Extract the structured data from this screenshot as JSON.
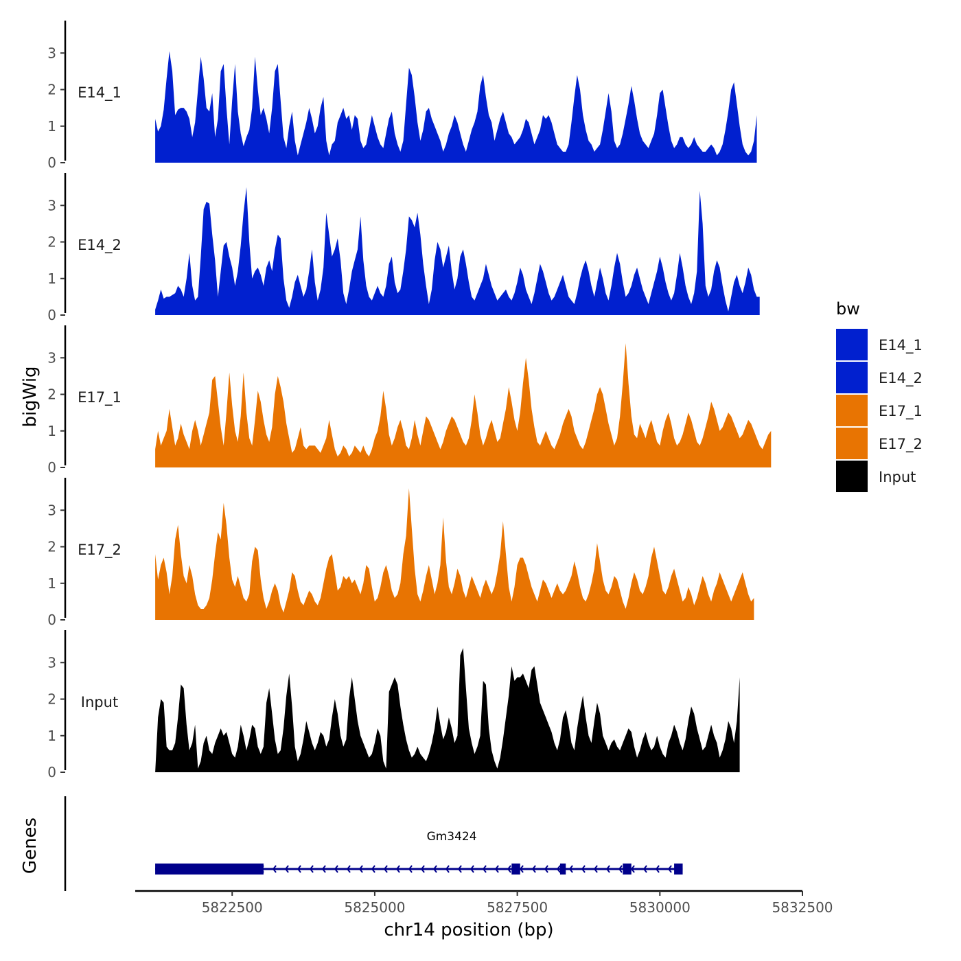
{
  "chart_data": {
    "type": "area",
    "title": "",
    "xlabel": "chr14 position (bp)",
    "ylabel": "bigWig",
    "genes_label": "Genes",
    "xlim": [
      5820800,
      5832500
    ],
    "x_ticks": [
      5822500,
      5825000,
      5827500,
      5830000,
      5832500
    ],
    "x_tick_labels": [
      "5822500",
      "5825000",
      "5827500",
      "5830000",
      "5832500"
    ],
    "ylim": [
      0,
      3.7
    ],
    "y_ticks": [
      0,
      1,
      2,
      3
    ],
    "y_tick_labels": [
      "0",
      "1",
      "2",
      "3"
    ],
    "data_start": 5821150,
    "data_step": 50,
    "legend": {
      "title": "bw",
      "entries": [
        {
          "label": "E14_1",
          "color": "#0120CF"
        },
        {
          "label": "E14_2",
          "color": "#0120CF"
        },
        {
          "label": "E17_1",
          "color": "#E87402"
        },
        {
          "label": "E17_2",
          "color": "#E87402"
        },
        {
          "label": "Input",
          "color": "#000000"
        }
      ]
    },
    "series": [
      {
        "name": "E14_1",
        "color": "#0120CF",
        "values": [
          1.2,
          0.85,
          1.0,
          1.45,
          2.3,
          3.05,
          2.5,
          1.3,
          1.45,
          1.5,
          1.5,
          1.4,
          1.2,
          0.7,
          1.1,
          2.0,
          2.9,
          2.3,
          1.5,
          1.4,
          1.9,
          0.7,
          1.2,
          2.5,
          2.7,
          1.5,
          0.5,
          1.7,
          2.7,
          1.4,
          0.8,
          0.45,
          0.7,
          0.9,
          1.5,
          2.9,
          2.0,
          1.3,
          1.5,
          1.2,
          0.8,
          1.5,
          2.5,
          2.7,
          1.7,
          0.7,
          0.4,
          1.0,
          1.4,
          0.6,
          0.2,
          0.5,
          0.8,
          1.1,
          1.5,
          1.2,
          0.8,
          1.0,
          1.5,
          1.8,
          0.6,
          0.2,
          0.5,
          0.6,
          1.1,
          1.3,
          1.5,
          1.2,
          1.3,
          0.9,
          1.3,
          1.2,
          0.6,
          0.4,
          0.5,
          0.9,
          1.3,
          1.0,
          0.7,
          0.5,
          0.4,
          0.8,
          1.2,
          1.4,
          0.8,
          0.5,
          0.3,
          0.6,
          1.6,
          2.6,
          2.4,
          1.8,
          1.1,
          0.6,
          0.9,
          1.4,
          1.5,
          1.2,
          1.0,
          0.8,
          0.6,
          0.3,
          0.5,
          0.8,
          1.0,
          1.3,
          1.1,
          0.8,
          0.5,
          0.3,
          0.6,
          0.9,
          1.1,
          1.4,
          2.1,
          2.4,
          1.8,
          1.3,
          1.1,
          0.6,
          0.9,
          1.2,
          1.4,
          1.1,
          0.8,
          0.7,
          0.5,
          0.6,
          0.7,
          0.9,
          1.2,
          1.1,
          0.8,
          0.5,
          0.7,
          0.9,
          1.3,
          1.2,
          1.3,
          1.1,
          0.8,
          0.5,
          0.4,
          0.3,
          0.3,
          0.5,
          1.1,
          1.8,
          2.4,
          2.0,
          1.3,
          0.9,
          0.6,
          0.5,
          0.3,
          0.4,
          0.5,
          0.9,
          1.4,
          1.9,
          1.4,
          0.6,
          0.4,
          0.5,
          0.8,
          1.2,
          1.6,
          2.1,
          1.7,
          1.2,
          0.8,
          0.6,
          0.5,
          0.4,
          0.6,
          0.8,
          1.3,
          1.9,
          2.0,
          1.5,
          1.0,
          0.6,
          0.4,
          0.5,
          0.7,
          0.7,
          0.5,
          0.4,
          0.5,
          0.7,
          0.5,
          0.4,
          0.3,
          0.3,
          0.4,
          0.5,
          0.4,
          0.2,
          0.3,
          0.5,
          0.9,
          1.4,
          2.0,
          2.2,
          1.6,
          1.0,
          0.5,
          0.3,
          0.2,
          0.3,
          0.6,
          1.3
        ]
      },
      {
        "name": "E14_2",
        "color": "#0120CF",
        "values": [
          0.15,
          0.4,
          0.7,
          0.45,
          0.5,
          0.5,
          0.55,
          0.6,
          0.8,
          0.7,
          0.5,
          1.0,
          1.7,
          0.8,
          0.4,
          0.5,
          1.6,
          2.9,
          3.1,
          3.05,
          2.2,
          1.5,
          0.5,
          1.2,
          1.9,
          2.0,
          1.6,
          1.3,
          0.8,
          1.2,
          1.9,
          2.8,
          3.5,
          2.0,
          1.0,
          1.2,
          1.3,
          1.1,
          0.8,
          1.3,
          1.5,
          1.2,
          1.8,
          2.2,
          2.1,
          1.0,
          0.4,
          0.2,
          0.5,
          0.9,
          1.1,
          0.8,
          0.5,
          0.7,
          1.2,
          1.8,
          0.9,
          0.4,
          0.7,
          1.3,
          2.8,
          2.2,
          1.6,
          1.8,
          2.1,
          1.5,
          0.6,
          0.3,
          0.7,
          1.2,
          1.5,
          1.8,
          2.7,
          1.5,
          0.8,
          0.5,
          0.4,
          0.6,
          0.8,
          0.6,
          0.5,
          0.8,
          1.4,
          1.6,
          0.9,
          0.6,
          0.7,
          1.2,
          1.8,
          2.7,
          2.6,
          2.4,
          2.8,
          2.2,
          1.4,
          0.8,
          0.3,
          0.7,
          1.5,
          2.0,
          1.8,
          1.3,
          1.6,
          1.9,
          1.2,
          0.7,
          1.0,
          1.6,
          1.8,
          1.4,
          0.9,
          0.5,
          0.4,
          0.6,
          0.8,
          1.0,
          1.4,
          1.1,
          0.8,
          0.6,
          0.4,
          0.5,
          0.6,
          0.7,
          0.5,
          0.4,
          0.6,
          0.9,
          1.3,
          1.1,
          0.7,
          0.5,
          0.3,
          0.6,
          1.0,
          1.4,
          1.2,
          0.9,
          0.6,
          0.4,
          0.5,
          0.7,
          0.9,
          1.1,
          0.8,
          0.5,
          0.4,
          0.3,
          0.6,
          1.0,
          1.3,
          1.5,
          1.2,
          0.8,
          0.5,
          0.9,
          1.3,
          1.0,
          0.6,
          0.4,
          0.8,
          1.3,
          1.7,
          1.4,
          0.9,
          0.5,
          0.6,
          0.8,
          1.1,
          1.3,
          1.0,
          0.7,
          0.5,
          0.3,
          0.6,
          0.9,
          1.2,
          1.6,
          1.3,
          0.9,
          0.6,
          0.4,
          0.6,
          1.1,
          1.7,
          1.3,
          0.8,
          0.5,
          0.3,
          0.6,
          1.2,
          3.4,
          2.5,
          0.8,
          0.5,
          0.7,
          1.2,
          1.5,
          1.3,
          0.8,
          0.4,
          0.1,
          0.5,
          0.9,
          1.1,
          0.8,
          0.6,
          0.9,
          1.3,
          1.1,
          0.7,
          0.5,
          0.5
        ]
      },
      {
        "name": "E17_1",
        "color": "#E87402",
        "values": [
          0.5,
          1.0,
          0.6,
          0.8,
          1.0,
          1.6,
          1.1,
          0.6,
          0.8,
          1.2,
          0.9,
          0.7,
          0.5,
          1.0,
          1.3,
          1.0,
          0.6,
          0.9,
          1.2,
          1.5,
          2.4,
          2.5,
          1.8,
          1.1,
          0.6,
          1.5,
          2.6,
          1.7,
          1.0,
          0.7,
          1.4,
          2.6,
          1.5,
          0.8,
          0.6,
          1.3,
          2.1,
          1.8,
          1.3,
          0.9,
          0.7,
          1.1,
          2.0,
          2.5,
          2.2,
          1.8,
          1.2,
          0.8,
          0.4,
          0.5,
          0.8,
          1.1,
          0.6,
          0.5,
          0.6,
          0.6,
          0.6,
          0.5,
          0.4,
          0.6,
          0.8,
          1.3,
          0.9,
          0.5,
          0.3,
          0.4,
          0.6,
          0.5,
          0.3,
          0.4,
          0.6,
          0.5,
          0.4,
          0.6,
          0.4,
          0.3,
          0.5,
          0.8,
          1.0,
          1.4,
          2.1,
          1.6,
          0.9,
          0.6,
          0.8,
          1.1,
          1.3,
          1.0,
          0.6,
          0.5,
          0.8,
          1.3,
          0.9,
          0.6,
          1.0,
          1.4,
          1.3,
          1.1,
          0.9,
          0.7,
          0.5,
          0.7,
          1.0,
          1.2,
          1.4,
          1.3,
          1.1,
          0.9,
          0.7,
          0.6,
          0.8,
          1.3,
          2.0,
          1.5,
          0.9,
          0.6,
          0.8,
          1.1,
          1.3,
          1.0,
          0.7,
          0.8,
          1.2,
          1.6,
          2.2,
          1.8,
          1.3,
          1.0,
          1.5,
          2.3,
          3.0,
          2.4,
          1.6,
          1.1,
          0.7,
          0.6,
          0.8,
          1.0,
          0.8,
          0.6,
          0.5,
          0.7,
          0.9,
          1.2,
          1.4,
          1.6,
          1.4,
          1.0,
          0.8,
          0.6,
          0.5,
          0.7,
          1.0,
          1.3,
          1.6,
          2.0,
          2.2,
          2.0,
          1.6,
          1.2,
          0.9,
          0.6,
          0.8,
          1.4,
          2.3,
          3.4,
          2.3,
          1.4,
          0.9,
          0.8,
          1.2,
          1.0,
          0.8,
          1.1,
          1.3,
          1.0,
          0.7,
          0.6,
          1.0,
          1.3,
          1.5,
          1.2,
          0.8,
          0.6,
          0.7,
          0.9,
          1.2,
          1.5,
          1.3,
          1.0,
          0.7,
          0.6,
          0.8,
          1.1,
          1.4,
          1.8,
          1.6,
          1.3,
          1.0,
          1.1,
          1.3,
          1.5,
          1.4,
          1.2,
          1.0,
          0.8,
          0.9,
          1.1,
          1.3,
          1.2,
          1.0,
          0.8,
          0.6,
          0.5,
          0.7,
          0.9,
          1.0
        ]
      },
      {
        "name": "E17_2",
        "color": "#E87402",
        "values": [
          1.8,
          1.1,
          1.5,
          1.7,
          1.3,
          0.7,
          1.2,
          2.2,
          2.6,
          1.8,
          1.2,
          1.0,
          1.5,
          1.2,
          0.7,
          0.4,
          0.3,
          0.3,
          0.4,
          0.6,
          1.1,
          1.8,
          2.4,
          2.2,
          3.2,
          2.6,
          1.7,
          1.1,
          0.9,
          1.2,
          0.9,
          0.6,
          0.5,
          0.7,
          1.6,
          2.0,
          1.9,
          1.1,
          0.6,
          0.3,
          0.5,
          0.8,
          1.0,
          0.8,
          0.4,
          0.2,
          0.5,
          0.8,
          1.3,
          1.2,
          0.8,
          0.5,
          0.4,
          0.6,
          0.8,
          0.7,
          0.5,
          0.4,
          0.6,
          1.0,
          1.4,
          1.7,
          1.8,
          1.3,
          0.8,
          0.9,
          1.2,
          1.1,
          1.2,
          1.0,
          1.1,
          0.9,
          0.7,
          1.0,
          1.5,
          1.4,
          0.9,
          0.5,
          0.6,
          0.9,
          1.3,
          1.5,
          1.2,
          0.8,
          0.6,
          0.7,
          1.0,
          1.8,
          2.3,
          3.6,
          2.5,
          1.4,
          0.7,
          0.5,
          0.8,
          1.2,
          1.5,
          1.1,
          0.7,
          1.0,
          1.5,
          2.8,
          1.6,
          0.9,
          0.7,
          1.0,
          1.4,
          1.2,
          0.8,
          0.6,
          0.9,
          1.2,
          1.0,
          0.8,
          0.6,
          0.9,
          1.1,
          0.9,
          0.7,
          0.9,
          1.3,
          1.8,
          2.7,
          1.8,
          0.9,
          0.5,
          0.9,
          1.5,
          1.7,
          1.7,
          1.5,
          1.2,
          0.9,
          0.7,
          0.5,
          0.8,
          1.1,
          1.0,
          0.8,
          0.6,
          0.8,
          1.0,
          0.8,
          0.7,
          0.8,
          1.0,
          1.2,
          1.6,
          1.3,
          0.9,
          0.6,
          0.5,
          0.7,
          1.0,
          1.4,
          2.1,
          1.6,
          1.1,
          0.8,
          0.7,
          0.9,
          1.2,
          1.1,
          0.8,
          0.5,
          0.3,
          0.6,
          1.0,
          1.3,
          1.1,
          0.8,
          0.7,
          0.9,
          1.2,
          1.7,
          2.0,
          1.6,
          1.2,
          0.8,
          0.7,
          0.9,
          1.2,
          1.4,
          1.1,
          0.8,
          0.5,
          0.6,
          0.9,
          0.7,
          0.4,
          0.6,
          0.9,
          1.2,
          1.0,
          0.7,
          0.5,
          0.8,
          1.0,
          1.3,
          1.1,
          0.9,
          0.7,
          0.5,
          0.7,
          0.9,
          1.1,
          1.3,
          1.0,
          0.7,
          0.5,
          0.6
        ]
      },
      {
        "name": "Input",
        "color": "#000000",
        "values": [
          0.0,
          1.5,
          2.0,
          1.9,
          0.7,
          0.6,
          0.6,
          0.8,
          1.5,
          2.4,
          2.3,
          1.3,
          0.6,
          0.8,
          1.3,
          0.1,
          0.3,
          0.8,
          1.0,
          0.6,
          0.5,
          0.8,
          1.0,
          1.2,
          1.0,
          1.1,
          0.8,
          0.5,
          0.4,
          0.7,
          1.3,
          1.0,
          0.6,
          0.9,
          1.3,
          1.2,
          0.7,
          0.5,
          0.7,
          1.9,
          2.3,
          1.6,
          0.9,
          0.5,
          0.6,
          1.2,
          2.1,
          2.7,
          1.8,
          0.7,
          0.3,
          0.5,
          0.9,
          1.4,
          1.1,
          0.8,
          0.6,
          0.8,
          1.1,
          1.0,
          0.7,
          0.9,
          1.5,
          2.0,
          1.6,
          1.0,
          0.7,
          0.9,
          2.0,
          2.6,
          2.0,
          1.4,
          1.0,
          0.8,
          0.6,
          0.4,
          0.5,
          0.8,
          1.2,
          1.0,
          0.3,
          0.1,
          2.2,
          2.4,
          2.6,
          2.4,
          1.8,
          1.3,
          0.9,
          0.6,
          0.4,
          0.5,
          0.7,
          0.5,
          0.4,
          0.3,
          0.5,
          0.8,
          1.2,
          1.8,
          1.3,
          0.9,
          1.1,
          1.5,
          1.2,
          0.8,
          1.0,
          3.2,
          3.4,
          2.3,
          1.2,
          0.8,
          0.5,
          0.7,
          1.0,
          2.5,
          2.4,
          1.2,
          0.6,
          0.3,
          0.1,
          0.4,
          0.9,
          1.5,
          2.1,
          2.9,
          2.5,
          2.6,
          2.6,
          2.7,
          2.5,
          2.3,
          2.8,
          2.9,
          2.4,
          1.9,
          1.7,
          1.5,
          1.3,
          1.1,
          0.8,
          0.6,
          0.9,
          1.5,
          1.7,
          1.3,
          0.8,
          0.6,
          1.2,
          1.7,
          2.1,
          1.5,
          1.0,
          0.8,
          1.4,
          1.9,
          1.6,
          1.0,
          0.8,
          0.6,
          0.8,
          0.9,
          0.7,
          0.6,
          0.8,
          1.0,
          1.2,
          1.1,
          0.7,
          0.4,
          0.6,
          0.9,
          1.1,
          0.8,
          0.6,
          0.7,
          1.0,
          0.7,
          0.5,
          0.4,
          0.8,
          1.0,
          1.3,
          1.1,
          0.8,
          0.6,
          0.9,
          1.4,
          1.8,
          1.6,
          1.2,
          0.9,
          0.6,
          0.7,
          1.0,
          1.3,
          1.0,
          0.8,
          0.4,
          0.6,
          0.9,
          1.4,
          1.2,
          0.8,
          1.4,
          2.6
        ]
      }
    ],
    "gene": {
      "name": "Gm3424",
      "color": "#00008B",
      "start": 5821150,
      "end": 5830400,
      "strand": "-",
      "exons": [
        [
          5821150,
          5823050
        ],
        [
          5827400,
          5827550
        ],
        [
          5828250,
          5828350
        ],
        [
          5829350,
          5829500
        ],
        [
          5830250,
          5830400
        ]
      ]
    }
  }
}
